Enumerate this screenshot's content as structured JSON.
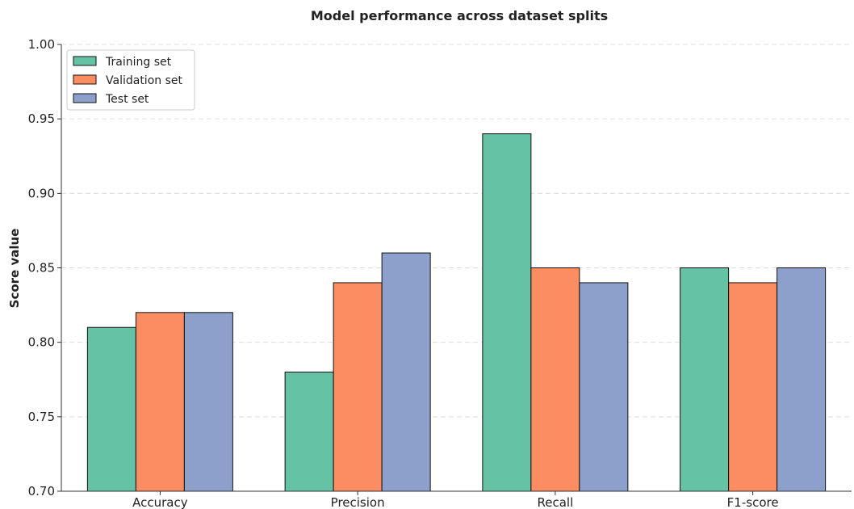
{
  "chart_data": {
    "type": "bar",
    "title": "Model performance across dataset splits",
    "xlabel": "",
    "ylabel": "Score value",
    "categories": [
      "Accuracy",
      "Precision",
      "Recall",
      "F1-score"
    ],
    "series": [
      {
        "name": "Training set",
        "values": [
          0.81,
          0.78,
          0.94,
          0.85
        ],
        "color": "#66c2a5"
      },
      {
        "name": "Validation set",
        "values": [
          0.82,
          0.84,
          0.85,
          0.84
        ],
        "color": "#fc8d62"
      },
      {
        "name": "Test set",
        "values": [
          0.82,
          0.86,
          0.84,
          0.85
        ],
        "color": "#8da0cb"
      }
    ],
    "ylim": [
      0.7,
      1.0
    ],
    "yticks": [
      "0.70",
      "0.75",
      "0.80",
      "0.85",
      "0.90",
      "0.95",
      "1.00"
    ],
    "grid": true,
    "legend_position": "top-left"
  }
}
